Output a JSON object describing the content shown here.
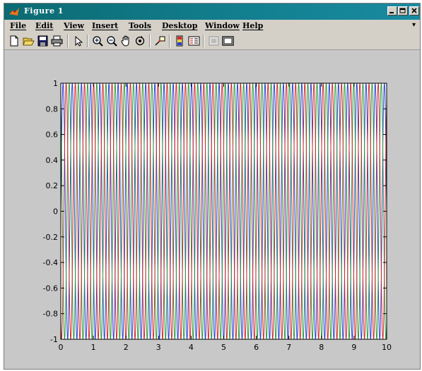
{
  "window": {
    "title": "Figure 1"
  },
  "menu": {
    "items": [
      "File",
      "Edit",
      "View",
      "Insert",
      "Tools",
      "Desktop",
      "Window",
      "Help"
    ],
    "overflow_arrow": "▾"
  },
  "toolbar": {
    "buttons": [
      {
        "name": "new-figure-icon"
      },
      {
        "name": "open-file-icon"
      },
      {
        "name": "save-icon"
      },
      {
        "name": "print-icon"
      },
      {
        "name": "edit-plot-arrow-icon"
      },
      {
        "name": "zoom-in-icon"
      },
      {
        "name": "zoom-out-icon"
      },
      {
        "name": "pan-hand-icon"
      },
      {
        "name": "rotate-3d-icon"
      },
      {
        "name": "data-cursor-icon"
      },
      {
        "name": "insert-colorbar-icon"
      },
      {
        "name": "insert-legend-icon"
      },
      {
        "name": "hide-plot-tools-icon"
      },
      {
        "name": "show-plot-tools-icon"
      }
    ]
  },
  "chart_data": {
    "type": "line",
    "title": "",
    "xlabel": "",
    "ylabel": "",
    "xlim": [
      0,
      10
    ],
    "ylim": [
      -1,
      1
    ],
    "x_ticks": [
      0,
      1,
      2,
      3,
      4,
      5,
      6,
      7,
      8,
      9,
      10
    ],
    "x_tick_labels": [
      "0",
      "1",
      "2",
      "3",
      "4",
      "5",
      "6",
      "7",
      "8",
      "9",
      "10"
    ],
    "y_ticks": [
      1,
      0.8,
      0.6,
      0.4,
      0.2,
      0,
      -0.2,
      -0.4,
      -0.6,
      -0.8,
      -1
    ],
    "y_tick_labels": [
      "1",
      "0.8",
      "0.6",
      "0.4",
      "0.2",
      "0",
      "-0.2",
      "-0.4",
      "-0.6",
      "-0.8",
      "-1"
    ],
    "grid": false,
    "series": [
      {
        "color": "#2a3fd0",
        "function": "sin",
        "frequency_cycles_per_unit": 3.55,
        "phase_rad": 0
      },
      {
        "color": "#2a9a3a",
        "function": "sin",
        "frequency_cycles_per_unit": 3.55,
        "phase_rad": 2.094
      },
      {
        "color": "#d02a2a",
        "function": "sin",
        "frequency_cycles_per_unit": 3.55,
        "phase_rad": 4.189
      }
    ]
  }
}
